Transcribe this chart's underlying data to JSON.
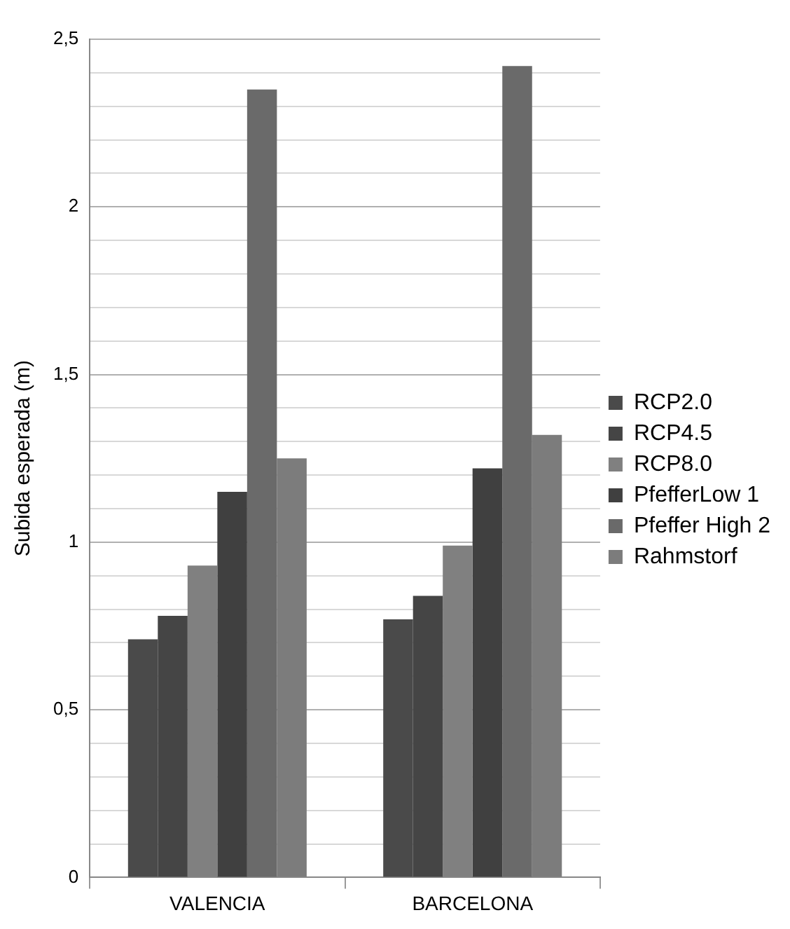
{
  "chart_data": {
    "type": "bar",
    "ylabel": "Subida esperada (m)",
    "categories": [
      "VALENCIA",
      "BARCELONA"
    ],
    "series": [
      {
        "name": "RCP2.0",
        "color": "#4a4a4a",
        "values": [
          0.71,
          0.77
        ]
      },
      {
        "name": "RCP4.5",
        "color": "#454545",
        "values": [
          0.78,
          0.84
        ]
      },
      {
        "name": "RCP8.0",
        "color": "#808080",
        "values": [
          0.93,
          0.99
        ]
      },
      {
        "name": "PfefferLow 1",
        "color": "#404040",
        "values": [
          1.15,
          1.22
        ]
      },
      {
        "name": "Pfeffer High 2",
        "color": "#6a6a6a",
        "values": [
          2.35,
          2.42
        ]
      },
      {
        "name": "Rahmstorf",
        "color": "#7c7c7c",
        "values": [
          1.25,
          1.32
        ]
      }
    ],
    "ylim": [
      0,
      2.5
    ],
    "yticks": [
      {
        "value": 0,
        "label": "0"
      },
      {
        "value": 0.1,
        "label": null
      },
      {
        "value": 0.2,
        "label": null
      },
      {
        "value": 0.3,
        "label": null
      },
      {
        "value": 0.4,
        "label": null
      },
      {
        "value": 0.5,
        "label": "0,5"
      },
      {
        "value": 0.6,
        "label": null
      },
      {
        "value": 0.7,
        "label": null
      },
      {
        "value": 0.8,
        "label": null
      },
      {
        "value": 0.9,
        "label": null
      },
      {
        "value": 1,
        "label": "1"
      },
      {
        "value": 1.1,
        "label": null
      },
      {
        "value": 1.2,
        "label": null
      },
      {
        "value": 1.3,
        "label": null
      },
      {
        "value": 1.4,
        "label": null
      },
      {
        "value": 1.5,
        "label": "1,5"
      },
      {
        "value": 1.6,
        "label": null
      },
      {
        "value": 1.7,
        "label": null
      },
      {
        "value": 1.8,
        "label": null
      },
      {
        "value": 1.9,
        "label": null
      },
      {
        "value": 2,
        "label": "2"
      },
      {
        "value": 2.1,
        "label": null
      },
      {
        "value": 2.2,
        "label": null
      },
      {
        "value": 2.3,
        "label": null
      },
      {
        "value": 2.4,
        "label": null
      },
      {
        "value": 2.5,
        "label": "2,5"
      }
    ],
    "grid": true,
    "legend": "right"
  }
}
